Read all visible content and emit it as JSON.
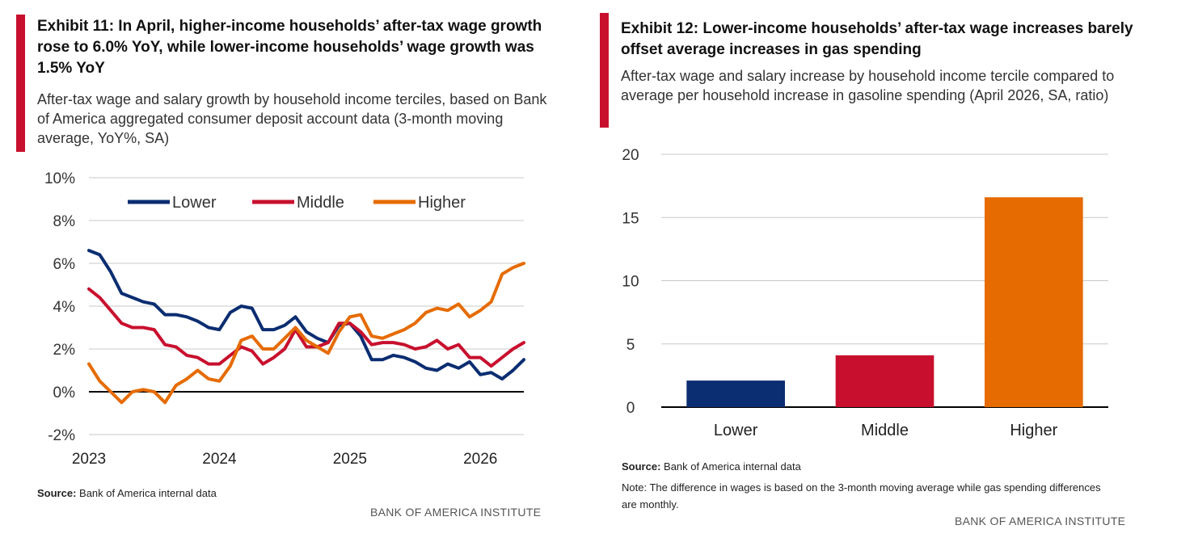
{
  "exhibit11": {
    "title": "Exhibit 11: In April, higher-income households’ after-tax wage growth rose to 6.0% YoY, while lower-income households’ wage growth was 1.5% YoY",
    "subtitle": "After-tax wage and salary growth by household income terciles, based on Bank of America aggregated consumer deposit account data (3-month moving average, YoY%, SA)",
    "source_label": "Source:",
    "source_text": " Bank of America internal data",
    "brand": "BANK OF AMERICA INSTITUTE"
  },
  "exhibit12": {
    "title": "Exhibit 12: Lower-income households’ after-tax wage increases barely offset average increases in gas spending",
    "subtitle": "After-tax wage and salary increase by household income tercile compared to average per household increase in gasoline spending (April 2026, SA, ratio)",
    "source_label": "Source:",
    "source_text": " Bank of America internal data",
    "note": "Note: The difference in wages is based on the 3-month moving average while gas spending differences are monthly.",
    "brand": "BANK OF AMERICA INSTITUTE"
  },
  "chart_data": [
    {
      "type": "line",
      "title": "Exhibit 11: In April, higher-income households’ after-tax wage growth rose to 6.0% YoY, while lower-income households’ wage growth was 1.5% YoY",
      "ylim": [
        -2,
        10
      ],
      "yticks": [
        -2,
        0,
        2,
        4,
        6,
        8,
        10
      ],
      "ytick_labels": [
        "-2%",
        "0%",
        "2%",
        "4%",
        "6%",
        "8%",
        "10%"
      ],
      "xlim": [
        2023.0,
        2026.333
      ],
      "xticks": [
        2023,
        2024,
        2025,
        2026
      ],
      "xtick_labels": [
        "2023",
        "2024",
        "2025",
        "2026"
      ],
      "grid": true,
      "legend": "top",
      "x": [
        2023.0,
        2023.083,
        2023.167,
        2023.25,
        2023.333,
        2023.417,
        2023.5,
        2023.583,
        2023.667,
        2023.75,
        2023.833,
        2023.917,
        2024.0,
        2024.083,
        2024.167,
        2024.25,
        2024.333,
        2024.417,
        2024.5,
        2024.583,
        2024.667,
        2024.75,
        2024.833,
        2024.917,
        2025.0,
        2025.083,
        2025.167,
        2025.25,
        2025.333,
        2025.417,
        2025.5,
        2025.583,
        2025.667,
        2025.75,
        2025.833,
        2025.917,
        2026.0,
        2026.083,
        2026.167,
        2026.25,
        2026.333
      ],
      "series": [
        {
          "name": "Lower",
          "color": "#0b2d71",
          "values": [
            6.6,
            6.4,
            5.6,
            4.6,
            4.4,
            4.2,
            4.1,
            3.6,
            3.6,
            3.5,
            3.3,
            3.0,
            2.9,
            3.7,
            4.0,
            3.9,
            2.9,
            2.9,
            3.1,
            3.5,
            2.8,
            2.5,
            2.3,
            3.1,
            3.2,
            2.6,
            1.5,
            1.5,
            1.7,
            1.6,
            1.4,
            1.1,
            1.0,
            1.3,
            1.1,
            1.4,
            0.8,
            0.9,
            0.6,
            1.0,
            1.5
          ]
        },
        {
          "name": "Middle",
          "color": "#c8102e",
          "values": [
            4.8,
            4.4,
            3.8,
            3.2,
            3.0,
            3.0,
            2.9,
            2.2,
            2.1,
            1.7,
            1.6,
            1.3,
            1.3,
            1.7,
            2.1,
            1.9,
            1.3,
            1.6,
            2.0,
            2.9,
            2.1,
            2.1,
            2.3,
            3.2,
            3.2,
            2.8,
            2.2,
            2.3,
            2.3,
            2.2,
            2.0,
            2.1,
            2.4,
            2.0,
            2.2,
            1.6,
            1.6,
            1.2,
            1.6,
            2.0,
            2.3
          ]
        },
        {
          "name": "Higher",
          "color": "#e66b00",
          "values": [
            1.3,
            0.5,
            0.0,
            -0.5,
            0.0,
            0.1,
            0.0,
            -0.5,
            0.3,
            0.6,
            1.0,
            0.6,
            0.5,
            1.2,
            2.4,
            2.6,
            2.0,
            2.0,
            2.5,
            3.0,
            2.4,
            2.1,
            1.8,
            2.8,
            3.5,
            3.6,
            2.6,
            2.5,
            2.7,
            2.9,
            3.2,
            3.7,
            3.9,
            3.8,
            4.1,
            3.5,
            3.8,
            4.2,
            5.5,
            5.8,
            6.0
          ]
        }
      ]
    },
    {
      "type": "bar",
      "title": "Exhibit 12: Lower-income households’ after-tax wage increases barely offset average increases in gas spending",
      "categories": [
        "Lower",
        "Middle",
        "Higher"
      ],
      "values": [
        2.1,
        4.1,
        16.6
      ],
      "colors": [
        "#0b2d71",
        "#c8102e",
        "#e66b00"
      ],
      "ylim": [
        0,
        20
      ],
      "yticks": [
        0,
        5,
        10,
        15,
        20
      ],
      "ytick_labels": [
        "0",
        "5",
        "10",
        "15",
        "20"
      ],
      "grid": true
    }
  ]
}
